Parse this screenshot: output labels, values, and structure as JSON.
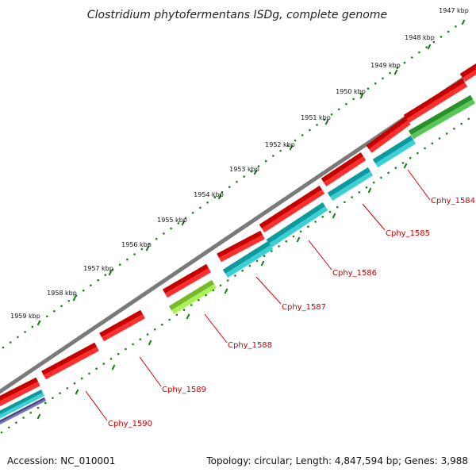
{
  "title": "Clostridium phytofermentans ISDg, complete genome",
  "accession_text": "Accession: NC_010001",
  "summary_text": "Topology: circular; Length: 4,847,594 bp; Genes: 3,988",
  "colors": {
    "backbone": "#7a7a7a",
    "tick_dots": "#1d7d1d",
    "gene_forward": "#ff0000",
    "gene_reverse_cyan": "#11c6cc",
    "gene_reverse_lime": "#99ee33",
    "gene_reverse_green": "#33bb33",
    "gene_reverse_blue": "#5a5aa8",
    "label": "#cc0000"
  },
  "ticks": [
    {
      "label": "1947 kbp"
    },
    {
      "label": "1948 kbp"
    },
    {
      "label": "1949 kbp"
    },
    {
      "label": "1950 kbp"
    },
    {
      "label": "1951 kbp"
    },
    {
      "label": "1952 kbp"
    },
    {
      "label": "1953 kbp"
    },
    {
      "label": "1954 kbp"
    },
    {
      "label": "1955 kbp"
    },
    {
      "label": "1956 kbp"
    },
    {
      "label": "1957 kbp"
    },
    {
      "label": "1958 kbp"
    },
    {
      "label": "1959 kbp"
    }
  ],
  "gene_labels": [
    {
      "name": "Cphy_1584"
    },
    {
      "name": "Cphy_1585"
    },
    {
      "name": "Cphy_1586"
    },
    {
      "name": "Cphy_1587"
    },
    {
      "name": "Cphy_1588"
    },
    {
      "name": "Cphy_1589"
    },
    {
      "name": "Cphy_1590"
    }
  ]
}
